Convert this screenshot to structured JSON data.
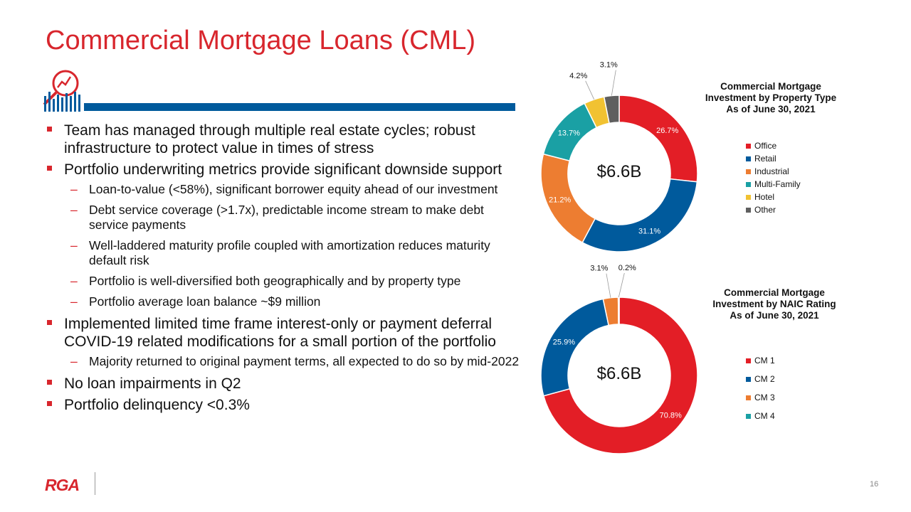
{
  "title": "Commercial Mortgage Loans (CML)",
  "bullets": [
    {
      "level": 1,
      "text": "Team has managed through multiple  real estate cycles; robust infrastructure to protect value in times of stress"
    },
    {
      "level": 1,
      "text": "Portfolio underwriting metrics provide significant downside support"
    },
    {
      "level": 2,
      "text": "Loan-to-value (<58%), significant borrower equity ahead of our investment"
    },
    {
      "level": 2,
      "text": "Debt service coverage (>1.7x), predictable income stream to make debt service payments"
    },
    {
      "level": 2,
      "text": "Well-laddered maturity profile coupled with amortization reduces maturity default risk"
    },
    {
      "level": 2,
      "text": "Portfolio is well-diversified both geographically and by property type"
    },
    {
      "level": 2,
      "text": "Portfolio average loan balance ~$9 million"
    },
    {
      "level": 1,
      "text": "Implemented  limited time frame interest-only or payment deferral COVID-19 related modifications for a small portion of the portfolio"
    },
    {
      "level": 2,
      "text": "Majority returned to original payment terms, all expected to do so by mid-2022"
    },
    {
      "level": 1,
      "text": "No loan impairments in Q2"
    },
    {
      "level": 1,
      "text": "Portfolio delinquency  <0.3%"
    }
  ],
  "chart_data": [
    {
      "type": "pie",
      "title": "Commercial Mortgage Investment by Property Type As of June 30, 2021",
      "title_lines": [
        "Commercial Mortgage",
        "Investment by Property Type",
        "As of June 30, 2021"
      ],
      "center_label": "$6.6B",
      "categories": [
        "Office",
        "Retail",
        "Industrial",
        "Multi-Family",
        "Hotel",
        "Other"
      ],
      "values": [
        26.7,
        31.1,
        21.2,
        13.7,
        4.2,
        3.1
      ],
      "data_labels": [
        "26.7%",
        "31.1%",
        "21.2%",
        "13.7%",
        "4.2%",
        "3.1%"
      ],
      "colors": [
        "#e31e26",
        "#005a9c",
        "#ed7d31",
        "#1aa0a4",
        "#f1c232",
        "#5f5f5f"
      ],
      "label_colors": [
        "#ffffff",
        "#ffffff",
        "#ffffff",
        "#ffffff",
        "#111111",
        "#111111"
      ],
      "legend": "right"
    },
    {
      "type": "pie",
      "title": "Commercial Mortgage Investment by NAIC Rating As of June 30, 2021",
      "title_lines": [
        "Commercial Mortgage",
        "Investment by NAIC Rating",
        "As of June 30, 2021"
      ],
      "center_label": "$6.6B",
      "categories": [
        "CM 1",
        "CM 2",
        "CM 3",
        "CM 4"
      ],
      "values": [
        70.8,
        25.9,
        3.1,
        0.2
      ],
      "data_labels": [
        "70.8%",
        "25.9%",
        "3.1%",
        "0.2%"
      ],
      "colors": [
        "#e31e26",
        "#005a9c",
        "#ed7d31",
        "#1aa0a4"
      ],
      "label_colors": [
        "#ffffff",
        "#ffffff",
        "#111111",
        "#111111"
      ],
      "legend": "right"
    }
  ],
  "footer": {
    "logo": "RGA",
    "page": "16"
  },
  "colors": {
    "accent": "#d8262d",
    "rule": "#005a9c"
  },
  "icons": {
    "header": "analytics-magnifier-icon"
  }
}
